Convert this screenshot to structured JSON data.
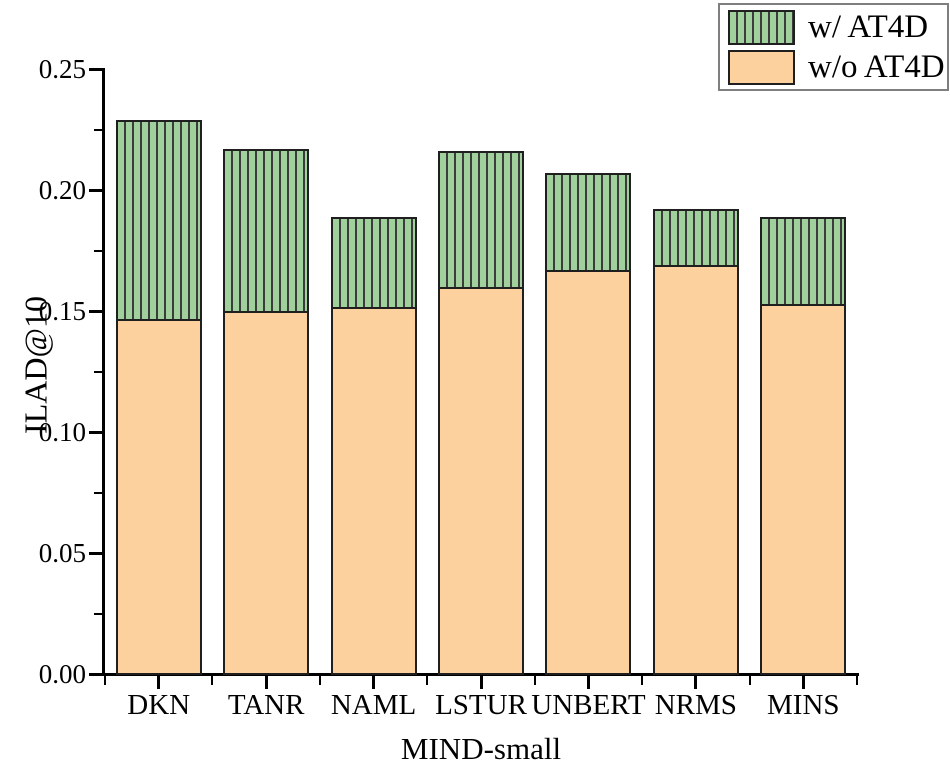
{
  "figure": {
    "legend": {
      "items": [
        {
          "label": "w/ AT4D",
          "swatch": "green-hatched-swatch"
        },
        {
          "label": "w/o AT4D",
          "swatch": "orange-swatch"
        }
      ]
    },
    "colors": {
      "bar_green": "#a0d09c",
      "hatch_line": "#3c3c3c",
      "bar_orange": "#fcd19e",
      "bar_border": "#1f1f1f",
      "axis": "#000000",
      "legend_border": "#7f7f7f"
    }
  },
  "chart_data": {
    "type": "bar",
    "subtype": "overlay-stacked",
    "title": "",
    "xlabel": "MIND-small",
    "ylabel": "ILAD@10",
    "categories": [
      "DKN",
      "TANR",
      "NAML",
      "LSTUR",
      "UNBERT",
      "NRMS",
      "MINS"
    ],
    "series": [
      {
        "name": "w/ AT4D",
        "style": "green-hatched",
        "values": [
          0.229,
          0.217,
          0.189,
          0.216,
          0.207,
          0.192,
          0.189
        ]
      },
      {
        "name": "w/o AT4D",
        "style": "orange",
        "values": [
          0.146,
          0.149,
          0.151,
          0.159,
          0.166,
          0.168,
          0.152
        ]
      }
    ],
    "ylim": [
      0.0,
      0.25
    ],
    "yticks": [
      0.0,
      0.05,
      0.1,
      0.15,
      0.2,
      0.25
    ],
    "ytick_labels": [
      "0.00",
      "0.05",
      "0.10",
      "0.15",
      "0.20",
      "0.25"
    ],
    "minor_ytick_step": 0.025,
    "grid": false,
    "legend_position": "top-right"
  }
}
